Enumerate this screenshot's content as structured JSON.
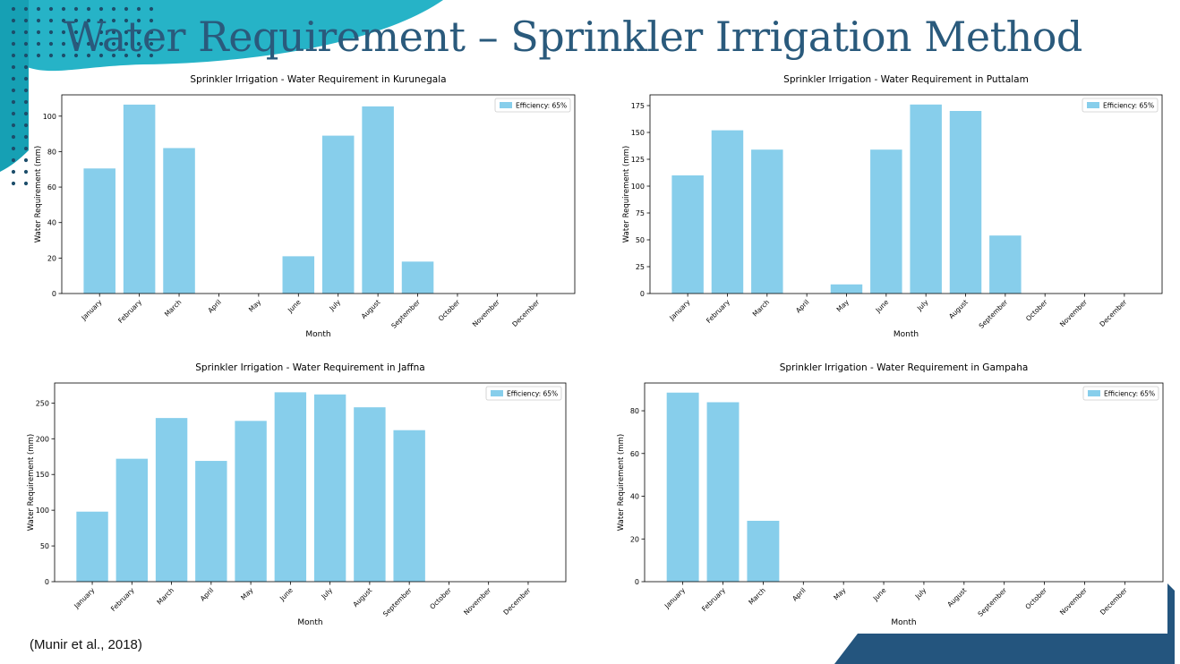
{
  "slide": {
    "title": "Water Requirement – Sprinkler Irrigation Method",
    "citation": "(Munir et al., 2018)",
    "colors": {
      "teal": "#1ea6bd",
      "navy": "#24557e",
      "dots": "#1d4e6b",
      "bar": "#87ceeb"
    }
  },
  "chart_data": [
    {
      "type": "bar",
      "title": "Sprinkler Irrigation - Water Requirement in Kurunegala",
      "xlabel": "Month",
      "ylabel": "Water Requirement (mm)",
      "categories": [
        "January",
        "February",
        "March",
        "April",
        "May",
        "June",
        "July",
        "August",
        "September",
        "October",
        "November",
        "December"
      ],
      "series": [
        {
          "name": "Efficiency: 65%",
          "values": [
            70.5,
            106.5,
            82,
            0,
            0,
            21,
            89,
            105.5,
            18,
            0,
            0,
            0
          ]
        }
      ],
      "ylim": [
        0,
        112
      ],
      "yticks": [
        0,
        20,
        40,
        60,
        80,
        100
      ],
      "legend": "top-right",
      "grid": false
    },
    {
      "type": "bar",
      "title": "Sprinkler Irrigation - Water Requirement in Puttalam",
      "xlabel": "Month",
      "ylabel": "Water Requirement (mm)",
      "categories": [
        "January",
        "February",
        "March",
        "April",
        "May",
        "June",
        "July",
        "August",
        "September",
        "October",
        "November",
        "December"
      ],
      "series": [
        {
          "name": "Efficiency: 65%",
          "values": [
            110,
            152,
            134,
            0,
            8.5,
            134,
            176,
            170,
            54,
            0,
            0,
            0
          ]
        }
      ],
      "ylim": [
        0,
        185
      ],
      "yticks": [
        0,
        25,
        50,
        75,
        100,
        125,
        150,
        175
      ],
      "legend": "top-right",
      "grid": false
    },
    {
      "type": "bar",
      "title": "Sprinkler Irrigation - Water Requirement in Jaffna",
      "xlabel": "Month",
      "ylabel": "Water Requirement (mm)",
      "categories": [
        "January",
        "February",
        "March",
        "April",
        "May",
        "June",
        "July",
        "August",
        "September",
        "October",
        "November",
        "December"
      ],
      "series": [
        {
          "name": "Efficiency: 65%",
          "values": [
            98,
            172,
            229,
            169,
            225,
            265,
            262,
            244,
            212,
            0,
            0,
            0
          ]
        }
      ],
      "ylim": [
        0,
        278
      ],
      "yticks": [
        0,
        50,
        100,
        150,
        200,
        250
      ],
      "legend": "top-right",
      "grid": false
    },
    {
      "type": "bar",
      "title": "Sprinkler Irrigation - Water Requirement in Gampaha",
      "xlabel": "Month",
      "ylabel": "Water Requirement (mm)",
      "categories": [
        "January",
        "February",
        "March",
        "April",
        "May",
        "June",
        "July",
        "August",
        "September",
        "October",
        "November",
        "December"
      ],
      "series": [
        {
          "name": "Efficiency: 65%",
          "values": [
            88.5,
            84,
            28.5,
            0,
            0,
            0,
            0,
            0,
            0,
            0,
            0,
            0
          ]
        }
      ],
      "ylim": [
        0,
        93
      ],
      "yticks": [
        0,
        20,
        40,
        60,
        80
      ],
      "legend": "top-right",
      "grid": false
    }
  ]
}
